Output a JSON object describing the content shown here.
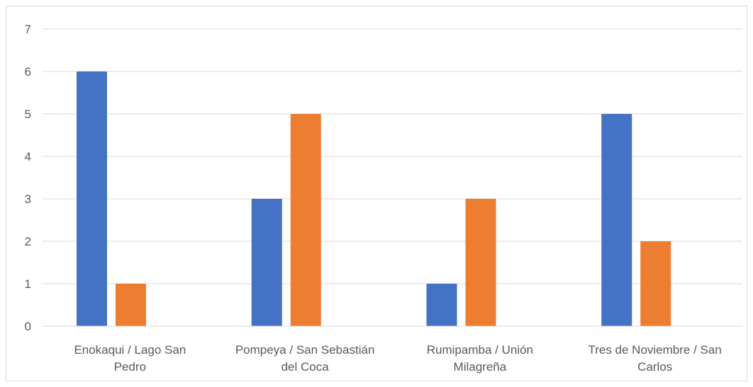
{
  "chart_data": {
    "type": "bar",
    "title": "",
    "xlabel": "",
    "ylabel": "",
    "categories": [
      [
        "Enokaqui / Lago San",
        "Pedro"
      ],
      [
        "Pompeya / San Sebastián",
        "del Coca"
      ],
      [
        "Rumipamba / Unión",
        "Milagreña"
      ],
      [
        "Tres de Noviembre / San",
        "Carlos"
      ]
    ],
    "series": [
      {
        "color": "#4472c4",
        "values": [
          6,
          3,
          1,
          5
        ]
      },
      {
        "color": "#ed7d31",
        "values": [
          1,
          5,
          3,
          2
        ]
      }
    ],
    "ylim": [
      0,
      7
    ],
    "yticks": [
      0,
      1,
      2,
      3,
      4,
      5,
      6,
      7
    ],
    "grid": true,
    "legend": "none"
  }
}
